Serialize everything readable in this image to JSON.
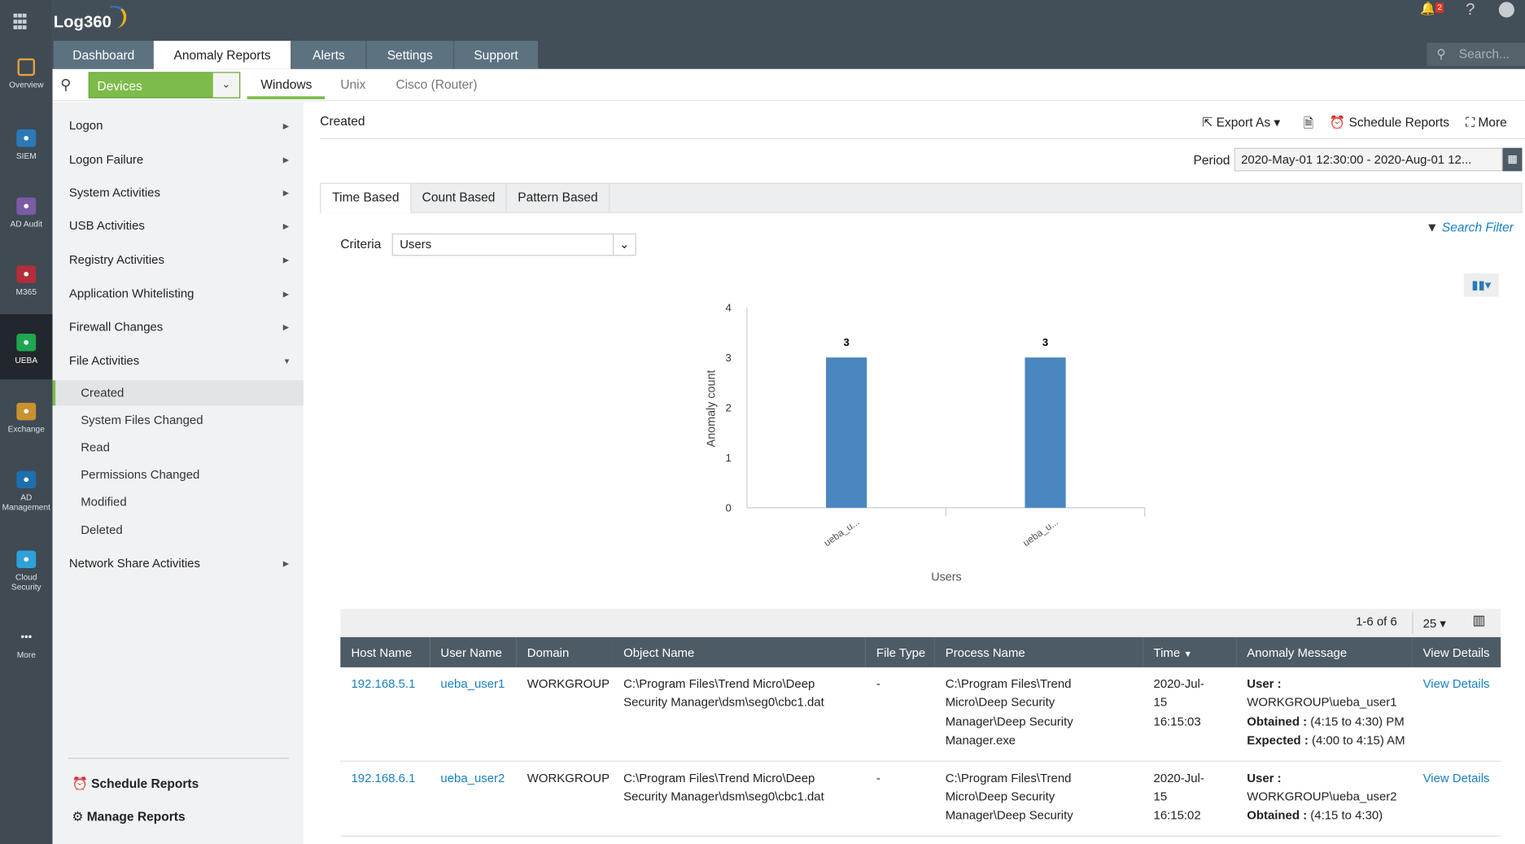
{
  "app": {
    "logo": "Log360",
    "notifications": "2",
    "help": "?",
    "search_placeholder": "Search..."
  },
  "rail": [
    {
      "label": "Overview",
      "color": "#e7a13b"
    },
    {
      "label": "SIEM",
      "color": "#2a7ab8"
    },
    {
      "label": "AD Audit",
      "color": "#7b5aa6"
    },
    {
      "label": "M365",
      "color": "#b32d3a"
    },
    {
      "label": "UEBA",
      "color": "#1fa651"
    },
    {
      "label": "Exchange",
      "color": "#c9922f"
    },
    {
      "label": "AD Management",
      "color": "#1e6fae"
    },
    {
      "label": "Cloud Security",
      "color": "#2ea0da"
    },
    {
      "label": "More",
      "color": "#3f4a53"
    }
  ],
  "tabs": [
    "Dashboard",
    "Anomaly Reports",
    "Alerts",
    "Settings",
    "Support"
  ],
  "subnav": {
    "device_type": "Devices",
    "os_tabs": [
      "Windows",
      "Unix",
      "Cisco (Router)"
    ]
  },
  "sidebar": {
    "categories": [
      "Logon",
      "Logon Failure",
      "System Activities",
      "USB Activities",
      "Registry Activities",
      "Application Whitelisting",
      "Firewall Changes",
      "File Activities"
    ],
    "sub_items": [
      "Created",
      "System Files Changed",
      "Read",
      "Permissions Changed",
      "Modified",
      "Deleted"
    ],
    "after": "Network Share Activities",
    "schedule": "Schedule Reports",
    "manage": "Manage Reports"
  },
  "main": {
    "title": "Created",
    "export": "Export As",
    "schedule": "Schedule Reports",
    "more": "More",
    "period_label": "Period",
    "period": "2020-May-01 12:30:00 - 2020-Aug-01 12...",
    "report_tabs": [
      "Time Based",
      "Count Based",
      "Pattern Based"
    ],
    "criteria_label": "Criteria",
    "criteria": "Users",
    "search_filter": "Search Filter"
  },
  "chart_data": {
    "type": "bar",
    "categories": [
      "ueba_u...",
      "ueba_u..."
    ],
    "values": [
      3,
      3
    ],
    "xlabel": "Users",
    "ylabel": "Anomaly count",
    "ylim": [
      0,
      4
    ],
    "yticks": [
      "0",
      "1",
      "2",
      "3",
      "4"
    ],
    "color": "#4a86c0"
  },
  "table": {
    "pagination": "1-6 of 6",
    "page_size": "25",
    "columns": [
      "Host Name",
      "User Name",
      "Domain",
      "Object Name",
      "File Type",
      "Process Name",
      "Time",
      "Anomaly Message",
      "View Details"
    ],
    "rows": [
      {
        "host": "192.168.5.1",
        "user": "ueba_user1",
        "domain": "WORKGROUP",
        "object": "C:\\Program Files\\Trend Micro\\Deep Security Manager\\dsm\\seg0\\cbc1.dat",
        "file_type": "-",
        "process": "C:\\Program Files\\Trend Micro\\Deep Security Manager\\Deep Security Manager.exe",
        "time": "2020-Jul-15 16:15:03",
        "msg_user_label": "User :",
        "msg_user": "WORKGROUP\\ueba_user1",
        "obtained_label": "Obtained :",
        "obtained": "(4:15 to 4:30) PM",
        "expected_label": "Expected :",
        "expected": "(4:00 to 4:15) AM",
        "view": "View Details"
      },
      {
        "host": "192.168.6.1",
        "user": "ueba_user2",
        "domain": "WORKGROUP",
        "object": "C:\\Program Files\\Trend Micro\\Deep Security Manager\\dsm\\seg0\\cbc1.dat",
        "file_type": "-",
        "process": "C:\\Program Files\\Trend Micro\\Deep Security Manager\\Deep Security",
        "time": "2020-Jul-15 16:15:02",
        "msg_user_label": "User :",
        "msg_user": "WORKGROUP\\ueba_user2",
        "obtained_label": "Obtained :",
        "obtained": "(4:15 to 4:30)",
        "view": "View Details"
      }
    ]
  }
}
